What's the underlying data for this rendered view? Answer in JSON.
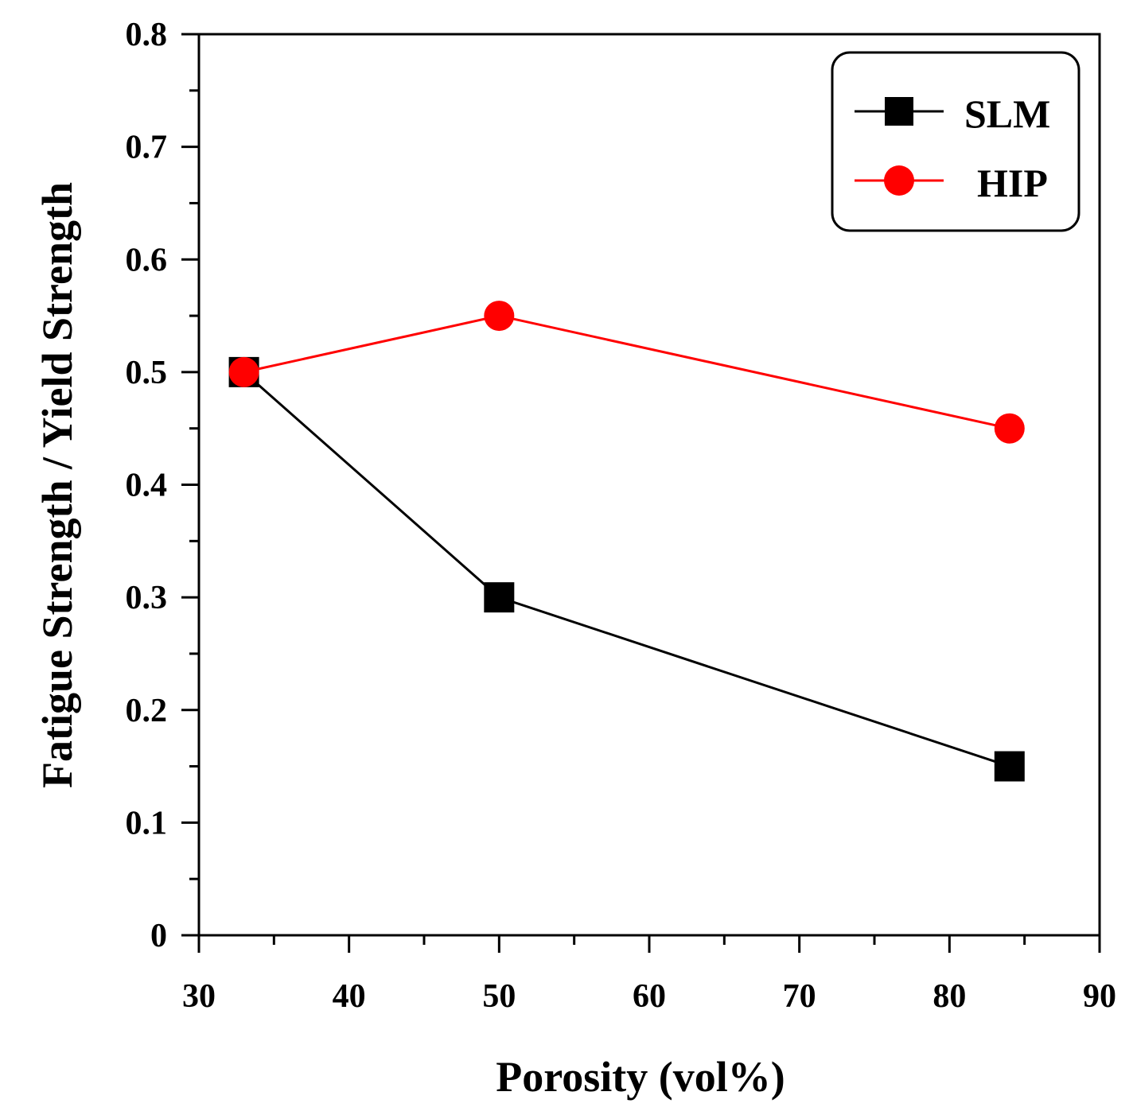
{
  "chart_data": {
    "type": "line",
    "xlabel": "Porosity (vol%)",
    "ylabel": "Fatigue Strength / Yield Strength",
    "xlim": [
      30,
      90
    ],
    "ylim": [
      0,
      0.8
    ],
    "x_ticks": [
      30,
      40,
      50,
      60,
      70,
      80,
      90
    ],
    "y_ticks": [
      0,
      0.1,
      0.2,
      0.3,
      0.4,
      0.5,
      0.6,
      0.7,
      0.8
    ],
    "x_tick_labels": [
      "30",
      "40",
      "50",
      "60",
      "70",
      "80",
      "90"
    ],
    "y_tick_labels": [
      "0",
      "0.1",
      "0.2",
      "0.3",
      "0.4",
      "0.5",
      "0.6",
      "0.7",
      "0.8"
    ],
    "legend_position": "top-right",
    "series": [
      {
        "name": "SLM",
        "marker": "square",
        "color": "#000000",
        "x": [
          33,
          50,
          84
        ],
        "y": [
          0.5,
          0.3,
          0.15
        ]
      },
      {
        "name": "HIP",
        "marker": "circle",
        "color": "#ff0000",
        "x": [
          33,
          50,
          84
        ],
        "y": [
          0.5,
          0.55,
          0.45
        ]
      }
    ]
  }
}
